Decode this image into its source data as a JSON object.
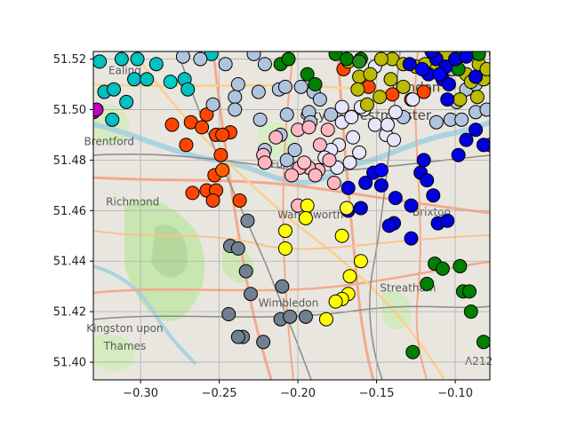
{
  "chart_data": {
    "type": "scatter",
    "title": "",
    "xlabel": "",
    "ylabel": "",
    "xlim": [
      -0.33,
      -0.078
    ],
    "ylim": [
      51.393,
      51.523
    ],
    "xticks": [
      -0.3,
      -0.25,
      -0.2,
      -0.15,
      -0.1
    ],
    "xtick_labels": [
      "−0.30",
      "−0.25",
      "−0.20",
      "−0.15",
      "−0.10"
    ],
    "yticks": [
      51.4,
      51.42,
      51.44,
      51.46,
      51.48,
      51.5,
      51.52
    ],
    "ytick_labels": [
      "51.40",
      "51.42",
      "51.44",
      "51.46",
      "51.48",
      "51.50",
      "51.52"
    ],
    "grid": true,
    "legend": "none",
    "background": "street map tiles (OpenStreetMap style)",
    "map_labels": [
      {
        "text": "Ealing",
        "x": -0.31,
        "y": 51.514
      },
      {
        "text": "Richmond",
        "x": -0.305,
        "y": 51.462
      },
      {
        "text": "Fulham",
        "x": -0.205,
        "y": 51.477
      },
      {
        "text": "Wandsworth",
        "x": -0.192,
        "y": 51.457
      },
      {
        "text": "City of Westminster",
        "x": -0.157,
        "y": 51.496
      },
      {
        "text": "London",
        "x": -0.125,
        "y": 51.507
      },
      {
        "text": "Brixton",
        "x": -0.115,
        "y": 51.458
      },
      {
        "text": "Wimbledon",
        "x": -0.206,
        "y": 51.422
      },
      {
        "text": "Streatham",
        "x": -0.13,
        "y": 51.428
      },
      {
        "text": "Kingston upon",
        "x": -0.31,
        "y": 51.412
      },
      {
        "text": "Thames",
        "x": -0.31,
        "y": 51.405
      },
      {
        "text": "Brentford",
        "x": -0.32,
        "y": 51.486
      },
      {
        "text": "A212",
        "x": -0.085,
        "y": 51.399
      }
    ],
    "series": [
      {
        "color": "#00c0c0",
        "points": [
          [
            -0.326,
            51.519
          ],
          [
            -0.312,
            51.52
          ],
          [
            -0.302,
            51.52
          ],
          [
            -0.29,
            51.518
          ],
          [
            -0.304,
            51.512
          ],
          [
            -0.323,
            51.507
          ],
          [
            -0.317,
            51.508
          ],
          [
            -0.296,
            51.512
          ],
          [
            -0.309,
            51.503
          ],
          [
            -0.318,
            51.496
          ],
          [
            -0.272,
            51.512
          ],
          [
            -0.27,
            51.508
          ],
          [
            -0.255,
            51.522
          ]
        ]
      },
      {
        "color": "#00cccc",
        "points": [
          [
            -0.281,
            51.511
          ]
        ]
      },
      {
        "color": "#c000c0",
        "points": [
          [
            -0.33,
            51.499
          ],
          [
            -0.328,
            51.5
          ],
          [
            -0.074,
            51.522
          ],
          [
            -0.078,
            51.486
          ]
        ]
      },
      {
        "color": "#ff4500",
        "points": [
          [
            -0.28,
            51.494
          ],
          [
            -0.268,
            51.495
          ],
          [
            -0.258,
            51.498
          ],
          [
            -0.261,
            51.493
          ],
          [
            -0.252,
            51.49
          ],
          [
            -0.243,
            51.491
          ],
          [
            -0.248,
            51.49
          ],
          [
            -0.271,
            51.486
          ],
          [
            -0.249,
            51.482
          ],
          [
            -0.253,
            51.474
          ],
          [
            -0.258,
            51.468
          ],
          [
            -0.252,
            51.468
          ],
          [
            -0.267,
            51.467
          ],
          [
            -0.254,
            51.464
          ],
          [
            -0.237,
            51.464
          ],
          [
            -0.171,
            51.516
          ],
          [
            -0.155,
            51.509
          ],
          [
            -0.14,
            51.506
          ],
          [
            -0.128,
            51.504
          ],
          [
            -0.12,
            51.507
          ]
        ]
      },
      {
        "color": "#ff6000",
        "points": [
          [
            -0.248,
            51.476
          ]
        ]
      },
      {
        "color": "#708090",
        "points": [
          [
            -0.243,
            51.446
          ],
          [
            -0.238,
            51.445
          ],
          [
            -0.233,
            51.436
          ],
          [
            -0.21,
            51.43
          ],
          [
            -0.23,
            51.427
          ],
          [
            -0.244,
            51.419
          ],
          [
            -0.235,
            51.41
          ],
          [
            -0.238,
            51.41
          ],
          [
            -0.222,
            51.408
          ],
          [
            -0.211,
            51.417
          ],
          [
            -0.205,
            51.418
          ],
          [
            -0.195,
            51.418
          ]
        ]
      },
      {
        "color": "#778899",
        "points": [
          [
            -0.232,
            51.456
          ]
        ]
      },
      {
        "color": "#b0c4de",
        "points": [
          [
            -0.273,
            51.521
          ],
          [
            -0.262,
            51.52
          ],
          [
            -0.246,
            51.518
          ],
          [
            -0.238,
            51.51
          ],
          [
            -0.221,
            51.518
          ],
          [
            -0.225,
            51.507
          ],
          [
            -0.24,
            51.505
          ],
          [
            -0.24,
            51.5
          ],
          [
            -0.254,
            51.502
          ],
          [
            -0.224,
            51.496
          ],
          [
            -0.212,
            51.508
          ],
          [
            -0.208,
            51.509
          ],
          [
            -0.198,
            51.509
          ],
          [
            -0.19,
            51.507
          ],
          [
            -0.186,
            51.504
          ],
          [
            -0.193,
            51.499
          ],
          [
            -0.211,
            51.49
          ],
          [
            -0.221,
            51.484
          ],
          [
            -0.207,
            51.48
          ],
          [
            -0.202,
            51.484
          ],
          [
            -0.207,
            51.498
          ],
          [
            -0.192,
            51.495
          ],
          [
            -0.179,
            51.498
          ],
          [
            -0.133,
            51.497
          ],
          [
            -0.112,
            51.495
          ],
          [
            -0.103,
            51.496
          ],
          [
            -0.096,
            51.496
          ],
          [
            -0.087,
            51.499
          ],
          [
            -0.08,
            51.5
          ],
          [
            -0.099,
            51.503
          ],
          [
            -0.093,
            51.508
          ],
          [
            -0.087,
            51.51
          ],
          [
            -0.102,
            51.516
          ],
          [
            -0.109,
            51.519
          ],
          [
            -0.228,
            51.522
          ]
        ]
      },
      {
        "color": "#e6e6fa",
        "points": [
          [
            -0.172,
            51.495
          ],
          [
            -0.165,
            51.489
          ],
          [
            -0.158,
            51.5
          ],
          [
            -0.151,
            51.494
          ],
          [
            -0.144,
            51.49
          ],
          [
            -0.139,
            51.488
          ],
          [
            -0.143,
            51.494
          ],
          [
            -0.16,
            51.501
          ],
          [
            -0.174,
            51.486
          ],
          [
            -0.161,
            51.483
          ],
          [
            -0.167,
            51.479
          ],
          [
            -0.175,
            51.477
          ],
          [
            -0.179,
            51.484
          ],
          [
            -0.183,
            51.481
          ],
          [
            -0.172,
            51.501
          ],
          [
            -0.166,
            51.497
          ],
          [
            -0.151,
            51.517
          ],
          [
            -0.117,
            51.518
          ],
          [
            -0.127,
            51.504
          ],
          [
            -0.138,
            51.499
          ]
        ]
      },
      {
        "color": "#ffb6c1",
        "points": [
          [
            -0.214,
            51.489
          ],
          [
            -0.2,
            51.492
          ],
          [
            -0.193,
            51.493
          ],
          [
            -0.186,
            51.486
          ],
          [
            -0.18,
            51.48
          ],
          [
            -0.187,
            51.476
          ],
          [
            -0.193,
            51.477
          ],
          [
            -0.199,
            51.477
          ],
          [
            -0.204,
            51.474
          ],
          [
            -0.189,
            51.474
          ],
          [
            -0.177,
            51.471
          ],
          [
            -0.2,
            51.462
          ],
          [
            -0.222,
            51.482
          ],
          [
            -0.221,
            51.479
          ],
          [
            -0.181,
            51.492
          ]
        ]
      },
      {
        "color": "#ffc0cb",
        "points": [
          [
            -0.196,
            51.479
          ]
        ]
      },
      {
        "color": "#bbbb00",
        "points": [
          [
            -0.168,
            51.519
          ],
          [
            -0.161,
            51.513
          ],
          [
            -0.162,
            51.508
          ],
          [
            -0.156,
            51.502
          ],
          [
            -0.148,
            51.505
          ],
          [
            -0.14,
            51.52
          ],
          [
            -0.133,
            51.518
          ],
          [
            -0.125,
            51.517
          ],
          [
            -0.119,
            51.518
          ],
          [
            -0.112,
            51.516
          ],
          [
            -0.106,
            51.522
          ],
          [
            -0.1,
            51.519
          ],
          [
            -0.093,
            51.514
          ],
          [
            -0.09,
            51.511
          ],
          [
            -0.085,
            51.518
          ],
          [
            -0.082,
            51.512
          ],
          [
            -0.08,
            51.516
          ],
          [
            -0.097,
            51.504
          ],
          [
            -0.086,
            51.505
          ],
          [
            -0.147,
            51.52
          ],
          [
            -0.154,
            51.514
          ],
          [
            -0.133,
            51.509
          ],
          [
            -0.141,
            51.512
          ]
        ]
      },
      {
        "color": "#008000",
        "points": [
          [
            -0.211,
            51.518
          ],
          [
            -0.206,
            51.52
          ],
          [
            -0.194,
            51.514
          ],
          [
            -0.189,
            51.51
          ],
          [
            -0.176,
            51.522
          ],
          [
            -0.169,
            51.52
          ],
          [
            -0.16,
            51.52
          ],
          [
            -0.113,
            51.439
          ],
          [
            -0.108,
            51.437
          ],
          [
            -0.097,
            51.438
          ],
          [
            -0.118,
            51.431
          ],
          [
            -0.095,
            51.428
          ],
          [
            -0.091,
            51.428
          ],
          [
            -0.09,
            51.42
          ],
          [
            -0.082,
            51.408
          ],
          [
            -0.127,
            51.404
          ],
          [
            -0.096,
            51.522
          ],
          [
            -0.098,
            51.516
          ],
          [
            -0.085,
            51.522
          ]
        ]
      },
      {
        "color": "#0000dd",
        "points": [
          [
            -0.168,
            51.469
          ],
          [
            -0.157,
            51.471
          ],
          [
            -0.152,
            51.475
          ],
          [
            -0.168,
            51.46
          ],
          [
            -0.16,
            51.461
          ],
          [
            -0.147,
            51.47
          ],
          [
            -0.138,
            51.465
          ],
          [
            -0.128,
            51.462
          ],
          [
            -0.139,
            51.455
          ],
          [
            -0.142,
            51.454
          ],
          [
            -0.128,
            51.449
          ],
          [
            -0.122,
            51.475
          ],
          [
            -0.12,
            51.48
          ],
          [
            -0.118,
            51.472
          ],
          [
            -0.114,
            51.466
          ],
          [
            -0.111,
            51.455
          ],
          [
            -0.105,
            51.456
          ],
          [
            -0.098,
            51.482
          ],
          [
            -0.093,
            51.488
          ],
          [
            -0.087,
            51.492
          ],
          [
            -0.082,
            51.486
          ],
          [
            -0.105,
            51.504
          ],
          [
            -0.117,
            51.514
          ],
          [
            -0.112,
            51.52
          ],
          [
            -0.106,
            51.517
          ],
          [
            -0.1,
            51.52
          ],
          [
            -0.093,
            51.521
          ],
          [
            -0.087,
            51.513
          ],
          [
            -0.129,
            51.518
          ],
          [
            -0.108,
            51.512
          ],
          [
            -0.104,
            51.51
          ],
          [
            -0.115,
            51.523
          ]
        ]
      },
      {
        "color": "#0000ff",
        "points": [
          [
            -0.147,
            51.476
          ],
          [
            -0.121,
            51.516
          ],
          [
            -0.11,
            51.514
          ]
        ]
      },
      {
        "color": "#ffff00",
        "points": [
          [
            -0.194,
            51.462
          ],
          [
            -0.195,
            51.457
          ],
          [
            -0.208,
            51.452
          ],
          [
            -0.208,
            51.445
          ],
          [
            -0.172,
            51.45
          ],
          [
            -0.16,
            51.44
          ],
          [
            -0.167,
            51.434
          ],
          [
            -0.168,
            51.427
          ],
          [
            -0.172,
            51.425
          ],
          [
            -0.176,
            51.424
          ],
          [
            -0.182,
            51.417
          ]
        ]
      },
      {
        "color": "#ffff33",
        "points": [
          [
            -0.169,
            51.461
          ]
        ]
      },
      {
        "color": "#228b22",
        "points": [
          [
            -0.161,
            51.519
          ]
        ]
      }
    ]
  }
}
